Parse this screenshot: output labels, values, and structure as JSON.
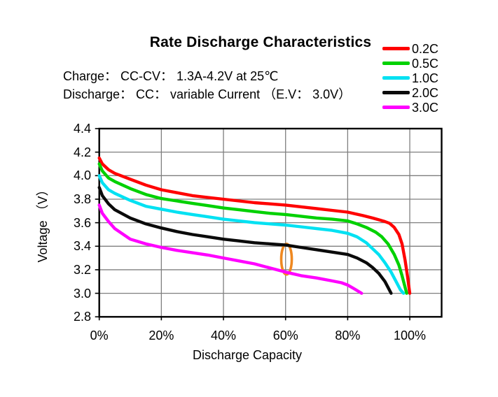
{
  "header": {
    "title": "Rate Discharge Characteristics",
    "charge_condition": "Charge：  CC-CV：  1.3A-4.2V at 25℃",
    "discharge_condition": "Discharge：  CC：  variable Current （E.V：  3.0V）"
  },
  "chart_data": {
    "type": "line",
    "title": "Rate Discharge Characteristics",
    "xlabel": "Discharge Capacity",
    "ylabel": "Voltage （V）",
    "x_unit": "percent",
    "y_unit": "V",
    "xlim": [
      0,
      110
    ],
    "ylim": [
      2.8,
      4.4
    ],
    "x_tick_labels": [
      "0%",
      "20%",
      "40%",
      "60%",
      "80%",
      "100%"
    ],
    "x_tick_values": [
      0,
      20,
      40,
      60,
      80,
      100
    ],
    "y_tick_labels": [
      "4.4",
      "4.2",
      "4.0",
      "3.8",
      "3.6",
      "3.4",
      "3.2",
      "3.0",
      "2.8"
    ],
    "y_tick_values": [
      4.4,
      4.2,
      4.0,
      3.8,
      3.6,
      3.4,
      3.2,
      3.0,
      2.8
    ],
    "grid": true,
    "grid_color": "#7f7f7f",
    "legend_position": "top-right",
    "series": [
      {
        "name": "0.2C",
        "color": "#ff0000",
        "points": [
          [
            0,
            4.15
          ],
          [
            1,
            4.1
          ],
          [
            3,
            4.05
          ],
          [
            5,
            4.02
          ],
          [
            10,
            3.97
          ],
          [
            15,
            3.92
          ],
          [
            20,
            3.88
          ],
          [
            25,
            3.855
          ],
          [
            30,
            3.83
          ],
          [
            35,
            3.815
          ],
          [
            40,
            3.8
          ],
          [
            45,
            3.785
          ],
          [
            50,
            3.77
          ],
          [
            55,
            3.76
          ],
          [
            60,
            3.75
          ],
          [
            65,
            3.735
          ],
          [
            70,
            3.72
          ],
          [
            75,
            3.705
          ],
          [
            80,
            3.69
          ],
          [
            85,
            3.66
          ],
          [
            88,
            3.64
          ],
          [
            90,
            3.625
          ],
          [
            92,
            3.61
          ],
          [
            93.5,
            3.595
          ],
          [
            95,
            3.56
          ],
          [
            96.5,
            3.5
          ],
          [
            97.5,
            3.42
          ],
          [
            98.5,
            3.28
          ],
          [
            99.3,
            3.14
          ],
          [
            100,
            3.0
          ]
        ]
      },
      {
        "name": "0.5C",
        "color": "#00d100",
        "points": [
          [
            0,
            4.1
          ],
          [
            1,
            4.04
          ],
          [
            3,
            3.98
          ],
          [
            5,
            3.95
          ],
          [
            10,
            3.89
          ],
          [
            15,
            3.84
          ],
          [
            20,
            3.805
          ],
          [
            25,
            3.785
          ],
          [
            30,
            3.765
          ],
          [
            35,
            3.745
          ],
          [
            40,
            3.725
          ],
          [
            45,
            3.71
          ],
          [
            50,
            3.695
          ],
          [
            55,
            3.68
          ],
          [
            60,
            3.67
          ],
          [
            65,
            3.655
          ],
          [
            70,
            3.64
          ],
          [
            75,
            3.63
          ],
          [
            80,
            3.615
          ],
          [
            83,
            3.59
          ],
          [
            86,
            3.56
          ],
          [
            89,
            3.52
          ],
          [
            91,
            3.48
          ],
          [
            93,
            3.42
          ],
          [
            95,
            3.33
          ],
          [
            96.5,
            3.24
          ],
          [
            97.5,
            3.15
          ],
          [
            98.5,
            3.05
          ],
          [
            99,
            3.0
          ]
        ]
      },
      {
        "name": "1.0C",
        "color": "#00e1f2",
        "points": [
          [
            0,
            4.0
          ],
          [
            1,
            3.94
          ],
          [
            3,
            3.88
          ],
          [
            5,
            3.85
          ],
          [
            10,
            3.79
          ],
          [
            15,
            3.74
          ],
          [
            20,
            3.715
          ],
          [
            25,
            3.69
          ],
          [
            30,
            3.67
          ],
          [
            35,
            3.65
          ],
          [
            40,
            3.63
          ],
          [
            45,
            3.615
          ],
          [
            50,
            3.6
          ],
          [
            55,
            3.59
          ],
          [
            60,
            3.58
          ],
          [
            65,
            3.565
          ],
          [
            70,
            3.55
          ],
          [
            75,
            3.535
          ],
          [
            80,
            3.51
          ],
          [
            83,
            3.48
          ],
          [
            86,
            3.43
          ],
          [
            88,
            3.38
          ],
          [
            90,
            3.33
          ],
          [
            92,
            3.26
          ],
          [
            94,
            3.18
          ],
          [
            96,
            3.08
          ],
          [
            97,
            3.03
          ],
          [
            98,
            3.0
          ]
        ]
      },
      {
        "name": "2.0C",
        "color": "#0a0a0a",
        "points": [
          [
            0,
            3.9
          ],
          [
            1,
            3.83
          ],
          [
            3,
            3.76
          ],
          [
            5,
            3.71
          ],
          [
            10,
            3.64
          ],
          [
            15,
            3.59
          ],
          [
            20,
            3.555
          ],
          [
            25,
            3.525
          ],
          [
            30,
            3.5
          ],
          [
            35,
            3.48
          ],
          [
            40,
            3.46
          ],
          [
            45,
            3.445
          ],
          [
            50,
            3.43
          ],
          [
            55,
            3.42
          ],
          [
            60,
            3.41
          ],
          [
            65,
            3.39
          ],
          [
            70,
            3.37
          ],
          [
            75,
            3.35
          ],
          [
            80,
            3.33
          ],
          [
            83,
            3.3
          ],
          [
            86,
            3.26
          ],
          [
            88,
            3.22
          ],
          [
            90,
            3.17
          ],
          [
            92,
            3.1
          ],
          [
            93,
            3.05
          ],
          [
            94,
            3.0
          ]
        ]
      },
      {
        "name": "3.0C",
        "color": "#ff00ff",
        "points": [
          [
            0,
            3.75
          ],
          [
            1,
            3.68
          ],
          [
            3,
            3.61
          ],
          [
            5,
            3.55
          ],
          [
            10,
            3.46
          ],
          [
            15,
            3.42
          ],
          [
            20,
            3.39
          ],
          [
            25,
            3.365
          ],
          [
            30,
            3.345
          ],
          [
            35,
            3.325
          ],
          [
            40,
            3.3
          ],
          [
            45,
            3.275
          ],
          [
            50,
            3.25
          ],
          [
            55,
            3.215
          ],
          [
            60,
            3.18
          ],
          [
            65,
            3.15
          ],
          [
            70,
            3.13
          ],
          [
            75,
            3.105
          ],
          [
            78,
            3.09
          ],
          [
            80,
            3.07
          ],
          [
            82,
            3.04
          ],
          [
            84.5,
            3.0
          ]
        ]
      }
    ],
    "annotation": {
      "shape": "ellipse",
      "description": "hand-drawn orange oval highlight between 2.0C and 3.0C curves",
      "center_x_pct": 60.3,
      "center_voltage": 3.29,
      "rx_pct": 1.7,
      "ry_volts": 0.13,
      "color": "#ef8820"
    }
  },
  "legend": {
    "items": [
      {
        "label": "0.2C",
        "color": "#ff0000"
      },
      {
        "label": "0.5C",
        "color": "#00d100"
      },
      {
        "label": "1.0C",
        "color": "#00e1f2"
      },
      {
        "label": "2.0C",
        "color": "#0a0a0a"
      },
      {
        "label": "3.0C",
        "color": "#ff00ff"
      }
    ]
  }
}
